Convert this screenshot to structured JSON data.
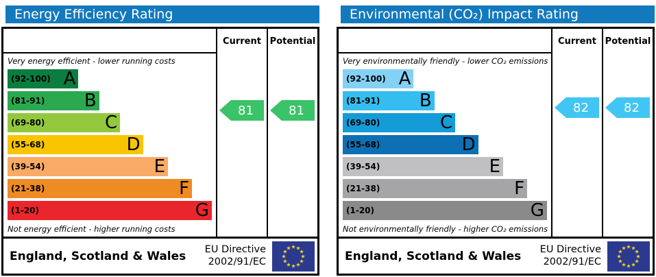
{
  "chart_data": [
    {
      "type": "bar",
      "title": "Energy Efficiency Rating",
      "categories": [
        "A (92-100)",
        "B (81-91)",
        "C (69-80)",
        "D (55-68)",
        "E (39-54)",
        "F (21-38)",
        "G (1-20)"
      ],
      "series": [
        {
          "name": "Current",
          "values": [
            81
          ]
        },
        {
          "name": "Potential",
          "values": [
            81
          ]
        }
      ],
      "scale_range": [
        1,
        100
      ],
      "current_band": "B",
      "potential_band": "B",
      "annotations": [
        "Very energy efficient - lower running costs",
        "Not energy efficient - higher running costs"
      ]
    },
    {
      "type": "bar",
      "title": "Environmental (CO₂) Impact Rating",
      "categories": [
        "A (92-100)",
        "B (81-91)",
        "C (69-80)",
        "D (55-68)",
        "E (39-54)",
        "F (21-38)",
        "G (1-20)"
      ],
      "series": [
        {
          "name": "Current",
          "values": [
            82
          ]
        },
        {
          "name": "Potential",
          "values": [
            82
          ]
        }
      ],
      "scale_range": [
        1,
        100
      ],
      "current_band": "B",
      "potential_band": "B",
      "annotations": [
        "Very environmentally friendly - lower CO₂ emissions",
        "Not environmentally friendly - higher CO₂ emissions"
      ]
    }
  ],
  "header_color": "#1379bd",
  "panels": [
    {
      "title": "Energy Efficiency Rating",
      "columns": {
        "current": "Current",
        "potential": "Potential"
      },
      "top_note": "Very energy efficient - lower running costs",
      "bottom_note": "Not energy efficient - higher running costs",
      "bands": [
        {
          "range": "(92-100)",
          "letter": "A",
          "color": "#0a7d3f",
          "width_pct": 34
        },
        {
          "range": "(81-91)",
          "letter": "B",
          "color": "#2aa94f",
          "width_pct": 44
        },
        {
          "range": "(69-80)",
          "letter": "C",
          "color": "#93c83d",
          "width_pct": 54
        },
        {
          "range": "(55-68)",
          "letter": "D",
          "color": "#f9c500",
          "width_pct": 65
        },
        {
          "range": "(39-54)",
          "letter": "E",
          "color": "#f9aa65",
          "width_pct": 77
        },
        {
          "range": "(21-38)",
          "letter": "F",
          "color": "#ee8b24",
          "width_pct": 88.5
        },
        {
          "range": "(1-20)",
          "letter": "G",
          "color": "#e9262b",
          "width_pct": 98
        }
      ],
      "current": {
        "value": "81",
        "color": "#3ac368"
      },
      "potential": {
        "value": "81",
        "color": "#3ac368"
      },
      "footer": {
        "region": "England, Scotland & Wales",
        "directive_line1": "EU Directive",
        "directive_line2": "2002/91/EC"
      }
    },
    {
      "title": "Environmental (CO₂) Impact Rating",
      "columns": {
        "current": "Current",
        "potential": "Potential"
      },
      "top_note": "Very environmentally friendly - lower CO₂ emissions",
      "bottom_note": "Not environmentally friendly - higher CO₂ emissions",
      "bands": [
        {
          "range": "(92-100)",
          "letter": "A",
          "color": "#83d1f5",
          "width_pct": 34
        },
        {
          "range": "(81-91)",
          "letter": "B",
          "color": "#35bdf0",
          "width_pct": 44
        },
        {
          "range": "(69-80)",
          "letter": "C",
          "color": "#159bd8",
          "width_pct": 54
        },
        {
          "range": "(55-68)",
          "letter": "D",
          "color": "#0d70b5",
          "width_pct": 65
        },
        {
          "range": "(39-54)",
          "letter": "E",
          "color": "#c0c0c2",
          "width_pct": 77
        },
        {
          "range": "(21-38)",
          "letter": "F",
          "color": "#a5a5a7",
          "width_pct": 88.5
        },
        {
          "range": "(1-20)",
          "letter": "G",
          "color": "#8a8a8a",
          "width_pct": 98
        }
      ],
      "current": {
        "value": "82",
        "color": "#41c6f3"
      },
      "potential": {
        "value": "82",
        "color": "#41c6f3"
      },
      "footer": {
        "region": "England, Scotland & Wales",
        "directive_line1": "EU Directive",
        "directive_line2": "2002/91/EC"
      }
    }
  ],
  "eu_flag": {
    "background": "#2b3a8e",
    "star_color": "#f4d02f"
  }
}
